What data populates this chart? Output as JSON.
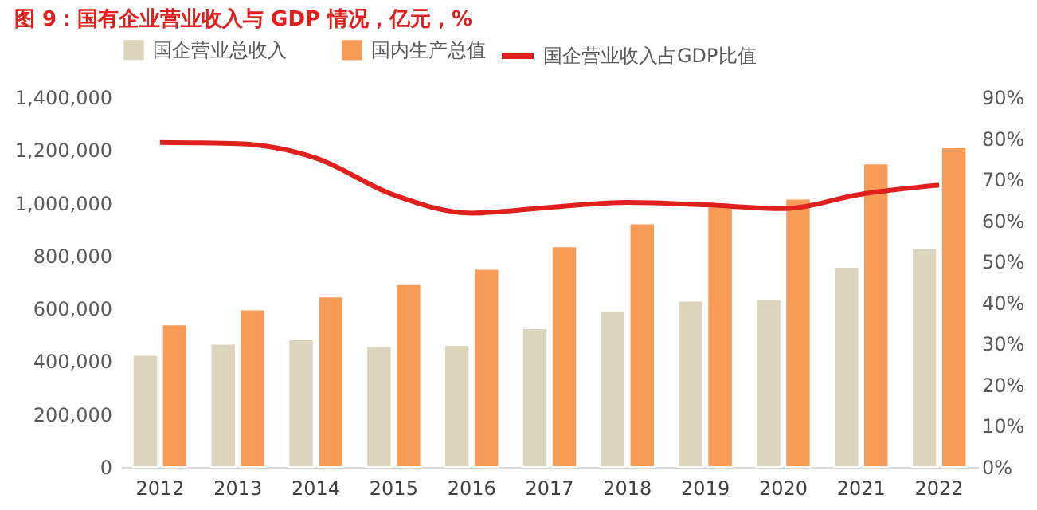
{
  "chart_data": {
    "type": "bar",
    "title": "图 9：国有企业营业收入与 GDP 情况，亿元，%",
    "categories": [
      "2012",
      "2013",
      "2014",
      "2015",
      "2016",
      "2017",
      "2018",
      "2019",
      "2020",
      "2021",
      "2022"
    ],
    "series": [
      {
        "name": "国企营业总收入",
        "color": "#ddd4bd",
        "values": [
          424000,
          466000,
          483000,
          457000,
          462000,
          525000,
          591000,
          629000,
          636000,
          757000,
          828000
        ]
      },
      {
        "name": "国内生产总值",
        "color": "#f89b57",
        "values": [
          539000,
          596000,
          645000,
          692000,
          750000,
          835000,
          922000,
          986000,
          1015000,
          1149000,
          1210000
        ]
      },
      {
        "name": "国企营业收入占GDP比值",
        "type": "line",
        "axis": "y2",
        "color": "#e0201d",
        "values": [
          79.0,
          78.7,
          75.2,
          66.2,
          61.8,
          63.2,
          64.4,
          63.8,
          62.9,
          66.4,
          68.6
        ]
      }
    ],
    "ylim": [
      0,
      1400000
    ],
    "yticks": [
      {
        "value": 0,
        "label": "0"
      },
      {
        "value": 200000,
        "label": "200,000"
      },
      {
        "value": 400000,
        "label": "400,000"
      },
      {
        "value": 600000,
        "label": "600,000"
      },
      {
        "value": 800000,
        "label": "800,000"
      },
      {
        "value": 1000000,
        "label": "1,000,000"
      },
      {
        "value": 1200000,
        "label": "1,200,000"
      },
      {
        "value": 1400000,
        "label": "1,400,000"
      }
    ],
    "y2lim": [
      0,
      90
    ],
    "y2ticks": [
      {
        "value": 0,
        "label": "0%"
      },
      {
        "value": 10,
        "label": "10%"
      },
      {
        "value": 20,
        "label": "20%"
      },
      {
        "value": 30,
        "label": "30%"
      },
      {
        "value": 40,
        "label": "40%"
      },
      {
        "value": 50,
        "label": "50%"
      },
      {
        "value": 60,
        "label": "60%"
      },
      {
        "value": 70,
        "label": "70%"
      },
      {
        "value": 80,
        "label": "80%"
      },
      {
        "value": 90,
        "label": "90%"
      }
    ],
    "legend": "top",
    "grid": false
  }
}
